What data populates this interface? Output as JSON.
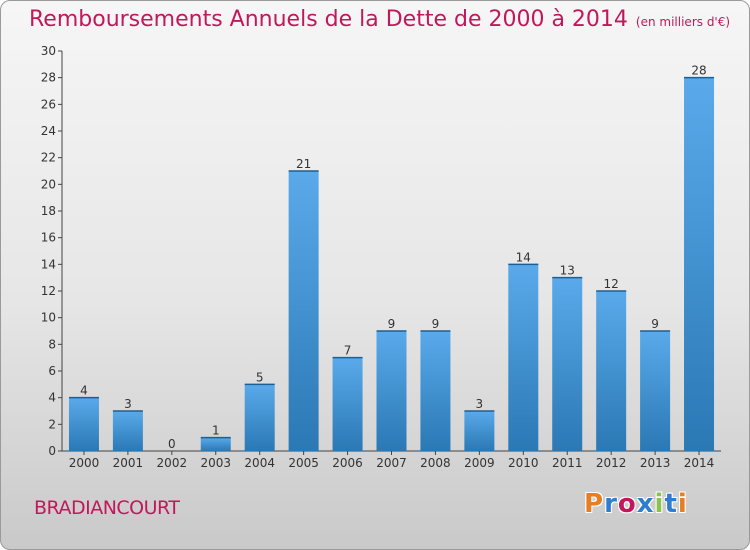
{
  "title": "Remboursements Annuels de la Dette de 2000 à 2014",
  "subtitle": "(en milliers d'€)",
  "town": "BRADIANCOURT",
  "logo": {
    "text": "Proxiti",
    "colors": [
      "#e67e22",
      "#2e7dd1",
      "#c2185b",
      "#2e7dd1",
      "#8bc34a",
      "#2e7dd1",
      "#e67e22"
    ]
  },
  "colors": {
    "bar_top": "#5aaaeb",
    "bar_bottom": "#2a78b4",
    "title": "#c2185b"
  },
  "chart_data": {
    "type": "bar",
    "title": "Remboursements Annuels de la Dette de 2000 à 2014",
    "categories": [
      "2000",
      "2001",
      "2002",
      "2003",
      "2004",
      "2005",
      "2006",
      "2007",
      "2008",
      "2009",
      "2010",
      "2011",
      "2012",
      "2013",
      "2014"
    ],
    "values": [
      4,
      3,
      0,
      1,
      5,
      21,
      7,
      9,
      9,
      3,
      14,
      13,
      12,
      9,
      28
    ],
    "ylim": [
      0,
      30
    ],
    "yticks": [
      0,
      2,
      4,
      6,
      8,
      10,
      12,
      14,
      16,
      18,
      20,
      22,
      24,
      26,
      28,
      30
    ],
    "xlabel": "",
    "ylabel": "",
    "grid": false
  }
}
